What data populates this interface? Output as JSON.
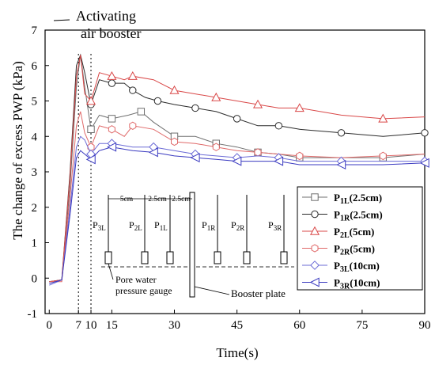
{
  "chart_data": {
    "type": "line",
    "xlabel": "Time(s)",
    "ylabel": "The change of excess PWP (kPa)",
    "xlim": [
      -1,
      90
    ],
    "ylim": [
      -1,
      7
    ],
    "x_ticks": [
      0,
      7,
      10,
      15,
      30,
      45,
      60,
      75,
      90
    ],
    "y_ticks": [
      -1,
      0,
      1,
      2,
      3,
      4,
      5,
      6,
      7
    ],
    "vlines": [
      7,
      10
    ],
    "annotation": {
      "line1": "Activating",
      "line2": "air booster"
    },
    "legend": {
      "placement": "right",
      "entries": [
        {
          "sym": "P",
          "sub": "1L",
          "rest": "(2.5cm)"
        },
        {
          "sym": "P",
          "sub": "1R",
          "rest": "(2.5cm)"
        },
        {
          "sym": "P",
          "sub": "2L",
          "rest": "(5cm)"
        },
        {
          "sym": "P",
          "sub": "2R",
          "rest": "(5cm)"
        },
        {
          "sym": "P",
          "sub": "3L",
          "rest": "(10cm)"
        },
        {
          "sym": "P",
          "sub": "3R",
          "rest": "(10cm)"
        }
      ]
    },
    "inset": {
      "dims": [
        "5cm",
        "2.5cm",
        "2.5cm"
      ],
      "sensors": [
        {
          "sym": "P",
          "sub": "3L"
        },
        {
          "sym": "P",
          "sub": "2L"
        },
        {
          "sym": "P",
          "sub": "1L"
        },
        {
          "sym": "P",
          "sub": "1R"
        },
        {
          "sym": "P",
          "sub": "2R"
        },
        {
          "sym": "P",
          "sub": "3R"
        }
      ],
      "gauge_label_1": "Pore water",
      "gauge_label_2": "pressure gauge",
      "plate_label": "Booster plate"
    },
    "series": [
      {
        "name": "P1L(2.5cm)",
        "color": "#6f6f6f",
        "marker": "square",
        "points": [
          [
            0,
            -0.1
          ],
          [
            3,
            -0.05
          ],
          [
            5,
            2.6
          ],
          [
            6.5,
            5.4
          ],
          [
            7.5,
            6.3
          ],
          [
            8.5,
            5.4
          ],
          [
            10,
            4.2
          ],
          [
            12,
            4.6
          ],
          [
            15,
            4.5
          ],
          [
            19,
            4.6
          ],
          [
            22,
            4.7
          ],
          [
            25,
            4.4
          ],
          [
            30,
            4.0
          ],
          [
            35,
            4.0
          ],
          [
            40,
            3.8
          ],
          [
            45,
            3.7
          ],
          [
            50,
            3.55
          ],
          [
            55,
            3.5
          ],
          [
            60,
            3.4
          ],
          [
            70,
            3.4
          ],
          [
            80,
            3.4
          ],
          [
            90,
            3.5
          ]
        ]
      },
      {
        "name": "P1R(2.5cm)",
        "color": "#2b2b2b",
        "marker": "circle",
        "points": [
          [
            0,
            -0.1
          ],
          [
            3,
            -0.05
          ],
          [
            5,
            3.0
          ],
          [
            6.5,
            6.0
          ],
          [
            7.5,
            6.3
          ],
          [
            8.5,
            5.8
          ],
          [
            10,
            4.9
          ],
          [
            12,
            5.6
          ],
          [
            15,
            5.5
          ],
          [
            18,
            5.5
          ],
          [
            20,
            5.3
          ],
          [
            23,
            5.1
          ],
          [
            26,
            5.0
          ],
          [
            30,
            4.9
          ],
          [
            35,
            4.8
          ],
          [
            40,
            4.7
          ],
          [
            45,
            4.5
          ],
          [
            50,
            4.3
          ],
          [
            55,
            4.3
          ],
          [
            60,
            4.2
          ],
          [
            70,
            4.1
          ],
          [
            80,
            4.0
          ],
          [
            90,
            4.1
          ]
        ]
      },
      {
        "name": "P2L(5cm)",
        "color": "#d94848",
        "marker": "triangle",
        "points": [
          [
            0,
            -0.1
          ],
          [
            3,
            -0.05
          ],
          [
            5,
            2.9
          ],
          [
            6.5,
            5.7
          ],
          [
            7.5,
            6.3
          ],
          [
            8.5,
            5.2
          ],
          [
            10,
            5.0
          ],
          [
            12,
            5.8
          ],
          [
            15,
            5.7
          ],
          [
            18,
            5.6
          ],
          [
            20,
            5.7
          ],
          [
            25,
            5.6
          ],
          [
            30,
            5.3
          ],
          [
            35,
            5.2
          ],
          [
            40,
            5.1
          ],
          [
            45,
            5.0
          ],
          [
            50,
            4.9
          ],
          [
            55,
            4.8
          ],
          [
            60,
            4.8
          ],
          [
            70,
            4.6
          ],
          [
            80,
            4.5
          ],
          [
            90,
            4.55
          ]
        ]
      },
      {
        "name": "P2R(5cm)",
        "color": "#e06a6a",
        "marker": "hexagon",
        "points": [
          [
            0,
            -0.1
          ],
          [
            3,
            -0.1
          ],
          [
            5,
            2.3
          ],
          [
            6.5,
            4.3
          ],
          [
            7.5,
            4.7
          ],
          [
            8.5,
            4.1
          ],
          [
            10,
            3.7
          ],
          [
            12,
            4.3
          ],
          [
            15,
            4.2
          ],
          [
            18,
            4.0
          ],
          [
            20,
            4.3
          ],
          [
            25,
            4.2
          ],
          [
            30,
            3.85
          ],
          [
            35,
            3.8
          ],
          [
            40,
            3.7
          ],
          [
            45,
            3.6
          ],
          [
            50,
            3.55
          ],
          [
            55,
            3.5
          ],
          [
            60,
            3.45
          ],
          [
            70,
            3.4
          ],
          [
            80,
            3.45
          ],
          [
            90,
            3.5
          ]
        ]
      },
      {
        "name": "P3L(10cm)",
        "color": "#6b6bd6",
        "marker": "diamond",
        "points": [
          [
            0,
            -0.2
          ],
          [
            3,
            -0.05
          ],
          [
            5,
            2.0
          ],
          [
            6.5,
            3.7
          ],
          [
            7.5,
            4.0
          ],
          [
            8.5,
            3.9
          ],
          [
            10,
            3.5
          ],
          [
            12,
            3.8
          ],
          [
            15,
            3.8
          ],
          [
            20,
            3.7
          ],
          [
            25,
            3.7
          ],
          [
            30,
            3.6
          ],
          [
            35,
            3.5
          ],
          [
            40,
            3.45
          ],
          [
            45,
            3.4
          ],
          [
            50,
            3.45
          ],
          [
            55,
            3.4
          ],
          [
            60,
            3.3
          ],
          [
            70,
            3.3
          ],
          [
            80,
            3.3
          ],
          [
            90,
            3.3
          ]
        ]
      },
      {
        "name": "P3R(10cm)",
        "color": "#3a3ac0",
        "marker": "triangle-left",
        "points": [
          [
            0,
            -0.15
          ],
          [
            3,
            -0.05
          ],
          [
            5,
            1.8
          ],
          [
            6.5,
            3.4
          ],
          [
            7.5,
            3.6
          ],
          [
            8.5,
            3.5
          ],
          [
            10,
            3.35
          ],
          [
            12,
            3.6
          ],
          [
            15,
            3.7
          ],
          [
            20,
            3.6
          ],
          [
            25,
            3.55
          ],
          [
            30,
            3.45
          ],
          [
            35,
            3.4
          ],
          [
            40,
            3.35
          ],
          [
            45,
            3.3
          ],
          [
            50,
            3.3
          ],
          [
            55,
            3.3
          ],
          [
            60,
            3.2
          ],
          [
            70,
            3.2
          ],
          [
            80,
            3.2
          ],
          [
            90,
            3.25
          ]
        ]
      }
    ]
  }
}
